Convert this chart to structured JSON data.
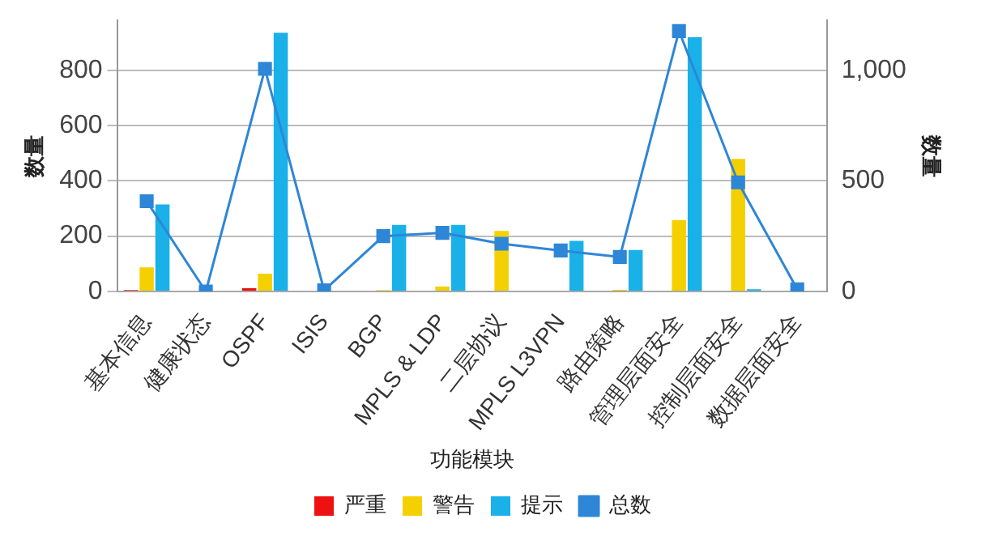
{
  "chart_data": {
    "type": "bar",
    "xlabel": "功能模块",
    "ylabel": "数量",
    "y2label": "数量",
    "categories": [
      "基本信息",
      "健康状态",
      "OSPF",
      "ISIS",
      "BGP",
      "MPLS & LDP",
      "二层协议",
      "MPLS L3VPN",
      "路由策略",
      "管理层面安全",
      "控制层面安全",
      "数据层面安全"
    ],
    "series": [
      {
        "name": "严重",
        "color": "#ee1111",
        "values": [
          5,
          0,
          12,
          0,
          null,
          0,
          0,
          0,
          0,
          0,
          0,
          0
        ]
      },
      {
        "name": "警告",
        "color": "#f5d000",
        "values": [
          87,
          0,
          64,
          0,
          5,
          18,
          219,
          0,
          6,
          258,
          479,
          0
        ]
      },
      {
        "name": "提示",
        "color": "#1ab0e8",
        "values": [
          315,
          0,
          935,
          0,
          241,
          241,
          0,
          183,
          150,
          919,
          8,
          0
        ]
      },
      {
        "name": "总数",
        "type": "line",
        "axis": "y2",
        "color": "#2e86d6",
        "marker": "square",
        "values": [
          408,
          0,
          1006,
          5,
          250,
          265,
          216,
          185,
          156,
          1177,
          493,
          10
        ]
      }
    ],
    "ylim": [
      0,
      980
    ],
    "yticks": [
      0,
      200,
      400,
      600,
      800
    ],
    "y2lim": [
      0,
      1225
    ],
    "y2ticks": [
      0,
      500,
      {
        "value": 1000,
        "label": "1,000"
      }
    ],
    "grid": "y",
    "legend": "bottom"
  }
}
